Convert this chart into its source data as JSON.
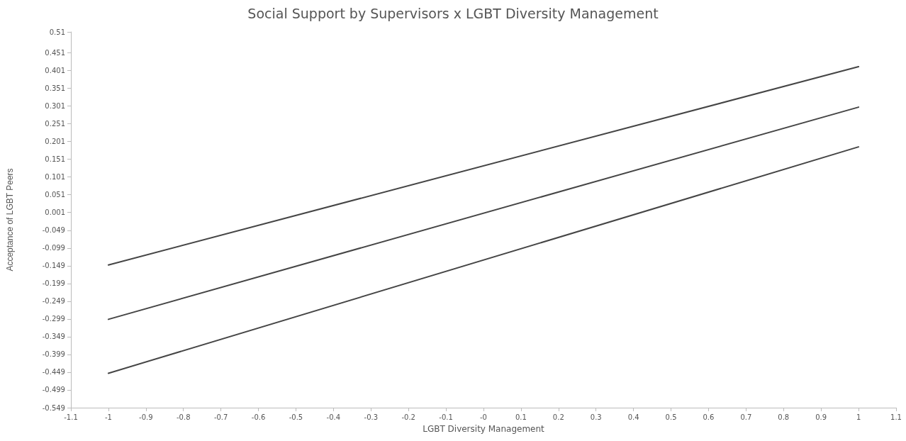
{
  "chart_data": {
    "type": "line",
    "title": "Social Support by Supervisors x LGBT Diversity Management",
    "xlabel": "LGBT Diversity Management",
    "ylabel": "Acceptance of LGBT Peers",
    "x": [
      -1,
      1
    ],
    "series": [
      {
        "color": "#454545",
        "values": [
          -0.147,
          0.412
        ]
      },
      {
        "color": "#454545",
        "values": [
          -0.3,
          0.298
        ]
      },
      {
        "color": "#454545",
        "values": [
          -0.452,
          0.186
        ]
      }
    ],
    "xlim": [
      -1.1,
      1.1
    ],
    "xticks": [
      -1.1,
      -1,
      -0.9,
      -0.8,
      -0.7,
      -0.6,
      -0.5,
      -0.4,
      -0.3,
      -0.2,
      -0.1,
      {
        "value": 0,
        "label": "-0"
      },
      0.1,
      0.2,
      0.3,
      0.4,
      0.5,
      0.6,
      0.7,
      0.8,
      0.9,
      1,
      1.1
    ],
    "ylim": [
      -0.549,
      0.51
    ],
    "yticks": [
      -0.549,
      -0.499,
      -0.449,
      -0.399,
      -0.349,
      -0.299,
      -0.249,
      -0.199,
      -0.149,
      -0.099,
      -0.049,
      0.001,
      0.051,
      0.101,
      0.151,
      0.201,
      0.251,
      0.301,
      0.351,
      0.401,
      0.451,
      0.51
    ],
    "grid": false,
    "marker": "none",
    "line_style": "solid"
  }
}
